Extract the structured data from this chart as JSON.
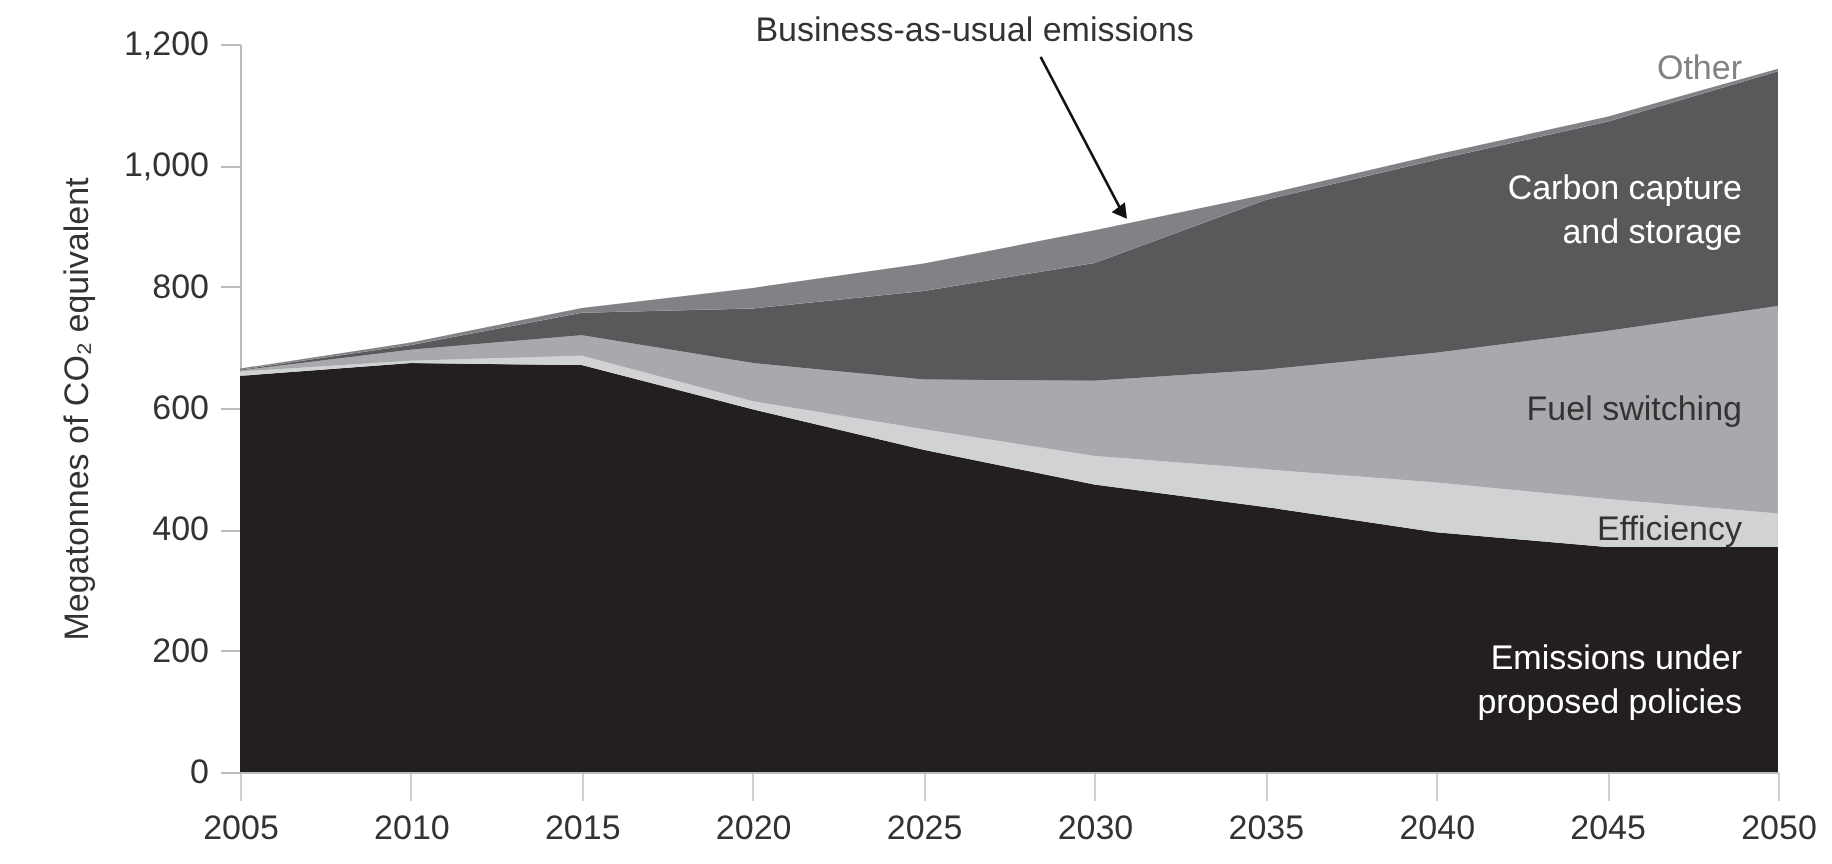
{
  "chart_data": {
    "type": "area",
    "stacked": true,
    "ylabel": "Megatonnes of CO₂ equivalent",
    "x": [
      2005,
      2010,
      2015,
      2020,
      2025,
      2030,
      2035,
      2040,
      2045,
      2050
    ],
    "xlim": [
      2005,
      2050
    ],
    "xticks": [
      2005,
      2010,
      2015,
      2020,
      2025,
      2030,
      2035,
      2040,
      2045,
      2050
    ],
    "ylim": [
      0,
      1200
    ],
    "yticks": [
      0,
      200,
      400,
      600,
      800,
      {
        "value": 1000,
        "label": "1,000"
      },
      {
        "value": 1200,
        "label": "1,200"
      }
    ],
    "grid": false,
    "legend": false,
    "series": [
      {
        "name": "Emissions under proposed policies",
        "color": "#231f20",
        "values": [
          653,
          674,
          671,
          598,
          531,
          474,
          437,
          395,
          371,
          371
        ]
      },
      {
        "name": "Efficiency",
        "color": "#d1d2d4",
        "values": [
          7,
          4,
          15,
          13,
          34,
          47,
          62,
          82,
          79,
          55
        ]
      },
      {
        "name": "Fuel switching",
        "color": "#a7a9ac",
        "values": [
          2,
          18,
          34,
          63,
          82,
          124,
          164,
          214,
          277,
          342
        ]
      },
      {
        "name": "Carbon capture and storage",
        "color": "#58595b",
        "values": [
          1,
          8,
          37,
          90,
          146,
          194,
          280,
          318,
          345,
          387
        ]
      },
      {
        "name": "Other",
        "color": "#808285",
        "values": [
          2,
          4,
          8,
          34,
          45,
          54,
          9,
          9,
          8,
          4
        ]
      }
    ],
    "annotations": [
      {
        "text": "Business-as-usual emissions",
        "x": 2031,
        "y": 905
      }
    ]
  }
}
